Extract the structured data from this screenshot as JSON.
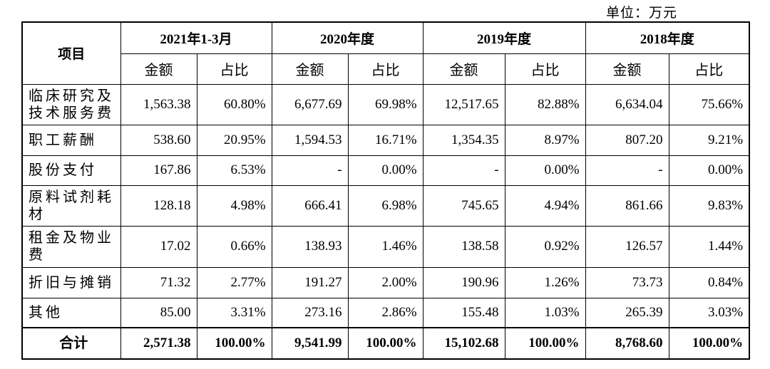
{
  "unit": "单位：万元",
  "table": {
    "item_header": "项目",
    "periods": [
      "2021年1-3月",
      "2020年度",
      "2019年度",
      "2018年度"
    ],
    "sub_headers": [
      "金额",
      "占比",
      "金额",
      "占比",
      "金额",
      "占比",
      "金额",
      "占比"
    ],
    "rows": [
      [
        "临床研究及技术服务费",
        "1,563.38",
        "60.80%",
        "6,677.69",
        "69.98%",
        "12,517.65",
        "82.88%",
        "6,634.04",
        "75.66%"
      ],
      [
        "职工薪酬",
        "538.60",
        "20.95%",
        "1,594.53",
        "16.71%",
        "1,354.35",
        "8.97%",
        "807.20",
        "9.21%"
      ],
      [
        "股份支付",
        "167.86",
        "6.53%",
        "-",
        "0.00%",
        "-",
        "0.00%",
        "-",
        "0.00%"
      ],
      [
        "原料试剂耗材",
        "128.18",
        "4.98%",
        "666.41",
        "6.98%",
        "745.65",
        "4.94%",
        "861.66",
        "9.83%"
      ],
      [
        "租金及物业费",
        "17.02",
        "0.66%",
        "138.93",
        "1.46%",
        "138.58",
        "0.92%",
        "126.57",
        "1.44%"
      ],
      [
        "折旧与摊销",
        "71.32",
        "2.77%",
        "191.27",
        "2.00%",
        "190.96",
        "1.26%",
        "73.73",
        "0.84%"
      ],
      [
        "其他",
        "85.00",
        "3.31%",
        "273.16",
        "2.86%",
        "155.48",
        "1.03%",
        "265.39",
        "3.03%"
      ]
    ],
    "total": [
      "合计",
      "2,571.38",
      "100.00%",
      "9,541.99",
      "100.00%",
      "15,102.68",
      "100.00%",
      "8,768.60",
      "100.00%"
    ]
  }
}
